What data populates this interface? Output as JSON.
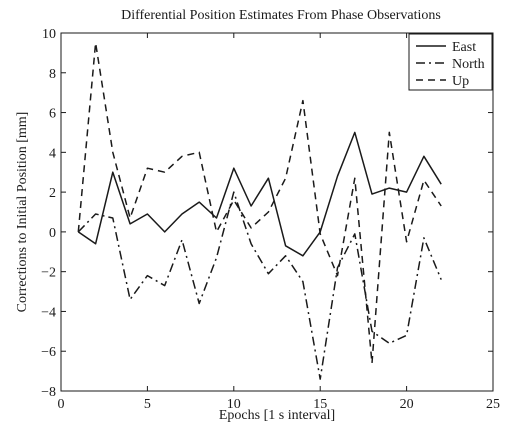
{
  "chart_data": {
    "type": "line",
    "title": "Differential Position Estimates From Phase Observations",
    "xlabel": "Epochs [1 s interval]",
    "ylabel": "Corrections to Initial Position [mm]",
    "xlim": [
      0,
      25
    ],
    "ylim": [
      -8,
      10
    ],
    "xticks": [
      0,
      5,
      10,
      15,
      20,
      25
    ],
    "yticks": [
      -8,
      -6,
      -4,
      -2,
      0,
      2,
      4,
      6,
      8,
      10
    ],
    "grid": false,
    "legend_position": "top-right",
    "x": [
      1,
      2,
      3,
      4,
      5,
      6,
      7,
      8,
      9,
      10,
      11,
      12,
      13,
      14,
      15,
      16,
      17,
      18,
      19,
      20,
      21,
      22
    ],
    "series": [
      {
        "name": "East",
        "style": "solid",
        "color": "#1a1a1a",
        "values": [
          0.0,
          -0.6,
          3.0,
          0.4,
          0.9,
          0.0,
          0.9,
          1.5,
          0.7,
          3.2,
          1.3,
          2.7,
          -0.7,
          -1.2,
          0.0,
          2.8,
          5.0,
          1.9,
          2.2,
          2.0,
          3.8,
          2.4
        ]
      },
      {
        "name": "North",
        "style": "dashdot",
        "color": "#1a1a1a",
        "values": [
          0.0,
          0.9,
          0.7,
          -3.4,
          -2.2,
          -2.7,
          -0.4,
          -3.6,
          -1.3,
          2.0,
          -0.6,
          -2.1,
          -1.2,
          -2.5,
          -7.4,
          -1.8,
          -0.1,
          -5.0,
          -5.6,
          -5.2,
          -0.3,
          -2.4
        ]
      },
      {
        "name": "Up",
        "style": "dashed",
        "color": "#1a1a1a",
        "values": [
          0.0,
          9.5,
          4.0,
          0.7,
          3.2,
          3.0,
          3.8,
          4.0,
          0.0,
          1.6,
          0.2,
          1.0,
          2.7,
          6.6,
          -0.1,
          -2.2,
          2.7,
          -6.6,
          5.0,
          -0.5,
          2.6,
          1.3
        ]
      }
    ]
  }
}
